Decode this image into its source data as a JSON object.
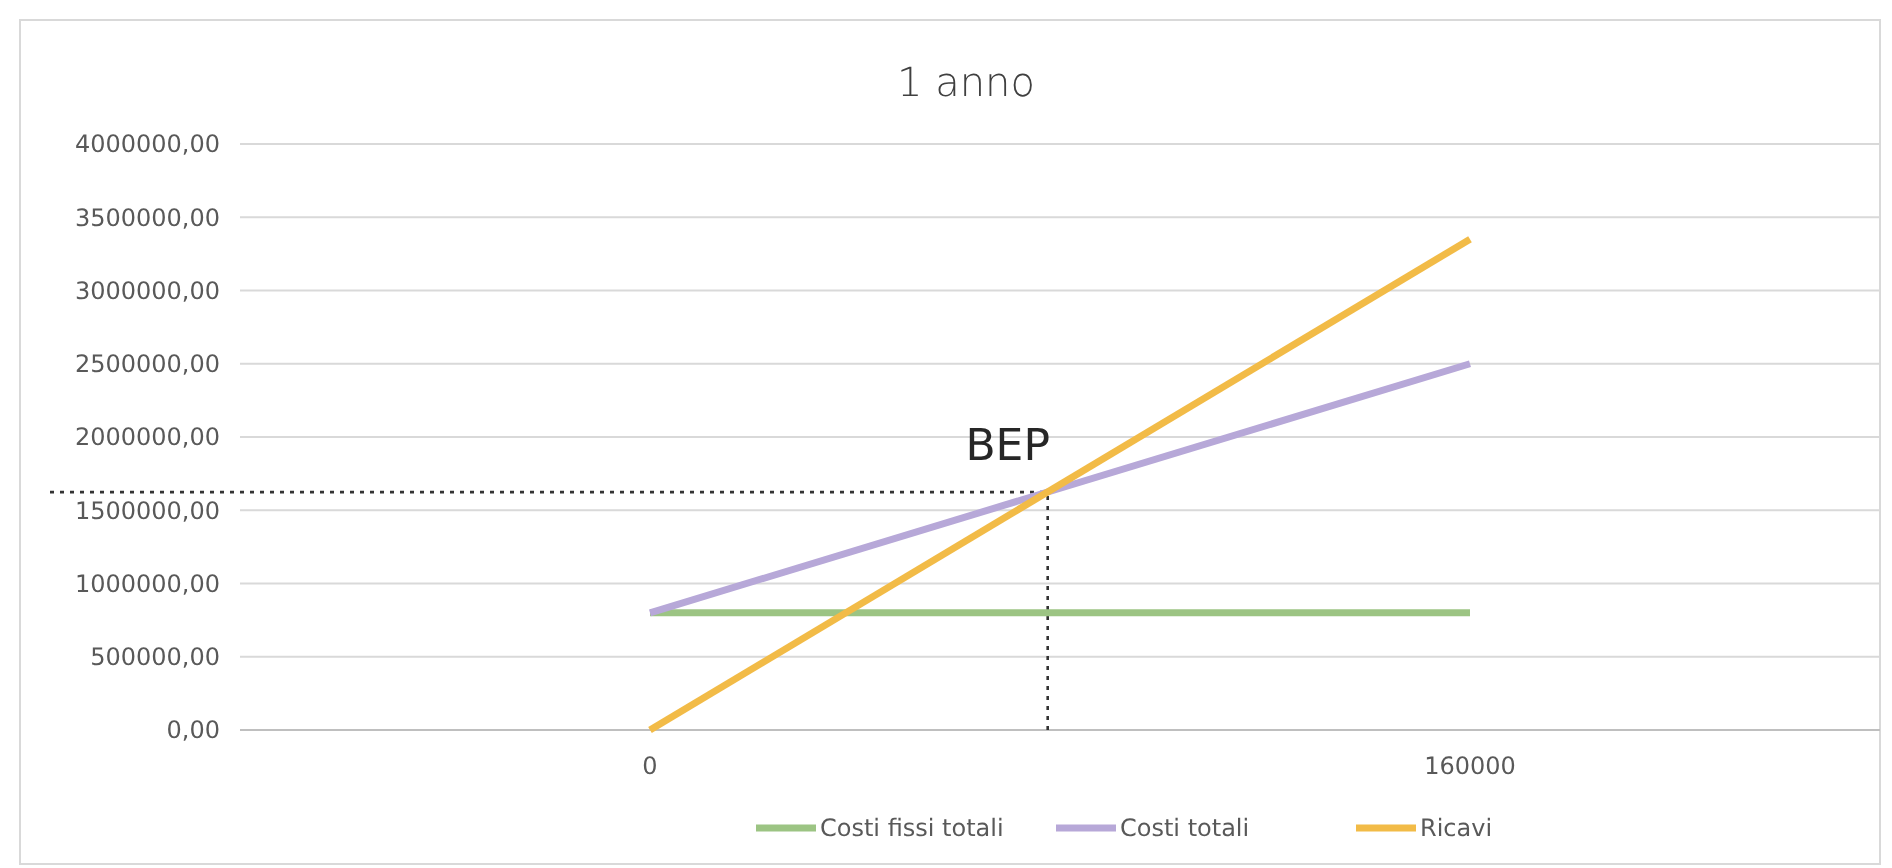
{
  "chart_data": {
    "type": "line",
    "title": "1 anno",
    "x": [
      0,
      160000
    ],
    "series": [
      {
        "name": "Costi fissi totali",
        "color": "#9cc483",
        "values": [
          800000,
          800000
        ]
      },
      {
        "name": "Costi totali",
        "color": "#b7a8d8",
        "values": [
          800000,
          2500000
        ]
      },
      {
        "name": "Ricavi",
        "color": "#f2bb47",
        "values": [
          0,
          3350000
        ]
      }
    ],
    "xlim": [
      -80000,
      240000
    ],
    "xticks": [
      0,
      160000
    ],
    "ylim": [
      0,
      4000000
    ],
    "yticks": [
      {
        "value": 0,
        "label": "0,00"
      },
      {
        "value": 500000,
        "label": "500000,00"
      },
      {
        "value": 1000000,
        "label": "1000000,00"
      },
      {
        "value": 1500000,
        "label": "1500000,00"
      },
      {
        "value": 2000000,
        "label": "2000000,00"
      },
      {
        "value": 2500000,
        "label": "2500000,00"
      },
      {
        "value": 3000000,
        "label": "3000000,00"
      },
      {
        "value": 3500000,
        "label": "3500000,00"
      },
      {
        "value": 4000000,
        "label": "4000000,00"
      }
    ],
    "ref_lines": [
      {
        "axis": "x",
        "value": 77600,
        "line_style": "dotted",
        "color": "#333333"
      },
      {
        "axis": "y",
        "value": 1624000,
        "line_style": "dotted",
        "color": "#333333"
      }
    ],
    "annotations": [
      {
        "text": "BEP",
        "x": 77600,
        "y": 1624000
      }
    ],
    "grid": "y",
    "legend": "bottom",
    "marker": "none",
    "line_style": "solid"
  }
}
